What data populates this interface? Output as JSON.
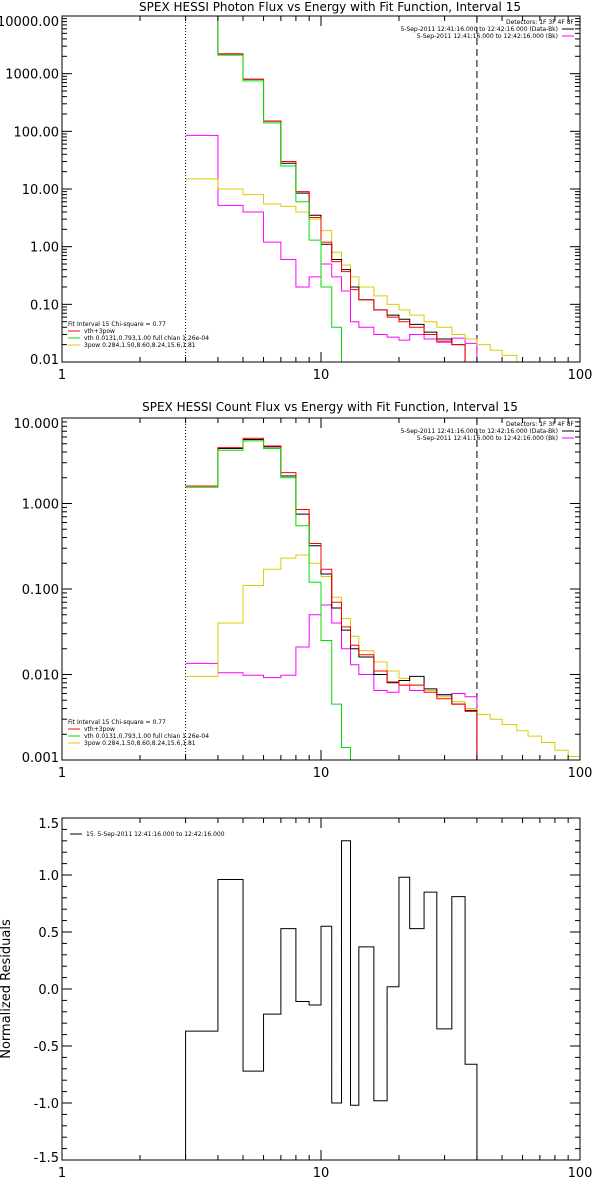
{
  "chart_data": [
    {
      "type": "line",
      "title": "SPEX HESSI Photon Flux vs Energy with Fit Function, Interval 15",
      "xlabel": "",
      "ylabel": "",
      "xscale": "log",
      "yscale": "log",
      "xlim": [
        1,
        100
      ],
      "ylim": [
        0.01,
        10000
      ],
      "xticks": [
        {
          "v": 1,
          "label": "1"
        },
        {
          "v": 10,
          "label": "10"
        },
        {
          "v": 100,
          "label": "100"
        }
      ],
      "yticks": [
        {
          "v": 10000,
          "label": "10000.00"
        },
        {
          "v": 1000,
          "label": "1000.00"
        },
        {
          "v": 100,
          "label": "100.00"
        },
        {
          "v": 10,
          "label": "10.00"
        },
        {
          "v": 1,
          "label": "1.00"
        },
        {
          "v": 0.1,
          "label": "0.10"
        },
        {
          "v": 0.01,
          "label": "0.01"
        }
      ],
      "vlines": [
        {
          "x": 3,
          "style": "dotted",
          "color": "#000000"
        },
        {
          "x": 40,
          "style": "dashed",
          "color": "#000000"
        }
      ],
      "info_lines": [
        "Detectors: 1F 3F 4F 8F",
        "5-Sep-2011 12:41:16.000 to 12:42:16.000 (Data-Bk)",
        "5-Sep-2011 12:41:16.000 to 12:42:16.000 (Bk)"
      ],
      "info_swatches": [
        "#000000",
        "#ff00ff"
      ],
      "fit_header": "Fit Interval 15   Chi-square = 0.77",
      "fit_legend": [
        {
          "label": "vth+3pow",
          "color": "#ff0000"
        },
        {
          "label": "vth 0.0131,0.793,1.00  full chian 1.26e-04",
          "color": "#00dd00"
        },
        {
          "label": "3pow 0.284,1.50,8.60,8.24,15.6,1.81",
          "color": "#ddcc00"
        }
      ],
      "edges": [
        3,
        4,
        5,
        6,
        7,
        8,
        9,
        10,
        11,
        12,
        13,
        14,
        16,
        18,
        20,
        22,
        25,
        28,
        32,
        36,
        40,
        45,
        50,
        57,
        63
      ],
      "series": [
        {
          "color": "#ff00ff",
          "values": [
            85,
            5.2,
            4,
            1.2,
            0.6,
            0.2,
            0.3,
            0.5,
            0.3,
            0.17,
            0.05,
            0.04,
            0.03,
            0.027,
            0.024,
            0.03,
            0.025,
            0.022,
            0.026,
            0.021,
            null,
            null,
            null,
            null
          ]
        },
        {
          "color": "#ddcc00",
          "values": [
            15,
            10,
            8,
            5.5,
            5,
            4,
            3,
            1.9,
            0.8,
            0.48,
            0.3,
            0.2,
            0.14,
            0.1,
            0.08,
            0.065,
            0.05,
            0.04,
            0.03,
            0.025,
            0.02,
            0.016,
            0.013,
            0.01
          ]
        },
        {
          "color": "#000000",
          "values": [
            10000,
            2200,
            800,
            150,
            28,
            8.5,
            3.5,
            1.1,
            0.6,
            0.4,
            0.2,
            0.12,
            0.08,
            0.065,
            0.055,
            0.045,
            0.033,
            0.025,
            0.02,
            null,
            null,
            null,
            null,
            null
          ]
        },
        {
          "color": "#ff0000",
          "values": [
            10000,
            2200,
            800,
            150,
            30,
            9,
            3.2,
            1.2,
            0.55,
            0.37,
            0.18,
            0.12,
            0.08,
            0.06,
            0.05,
            0.04,
            0.03,
            0.023,
            0.02,
            null,
            null,
            null,
            null,
            null
          ]
        },
        {
          "color": "#00dd00",
          "values": [
            10000,
            2100,
            750,
            140,
            25,
            6,
            1.3,
            0.2,
            0.04,
            0.01,
            null,
            null,
            null,
            null,
            null,
            null,
            null,
            null,
            null,
            null,
            null,
            null,
            null,
            null
          ]
        }
      ]
    },
    {
      "type": "line",
      "title": "SPEX HESSI Count Flux vs Energy with Fit Function, Interval 15",
      "xlabel": "",
      "ylabel": "",
      "xscale": "log",
      "yscale": "log",
      "xlim": [
        1,
        100
      ],
      "ylim": [
        0.001,
        10
      ],
      "xticks": [
        {
          "v": 1,
          "label": "1"
        },
        {
          "v": 10,
          "label": "10"
        },
        {
          "v": 100,
          "label": "100"
        }
      ],
      "yticks": [
        {
          "v": 10,
          "label": "10.000"
        },
        {
          "v": 1,
          "label": "1.000"
        },
        {
          "v": 0.1,
          "label": "0.100"
        },
        {
          "v": 0.01,
          "label": "0.010"
        },
        {
          "v": 0.001,
          "label": "0.001"
        }
      ],
      "vlines": [
        {
          "x": 3,
          "style": "dotted",
          "color": "#000000"
        },
        {
          "x": 40,
          "style": "dashed",
          "color": "#000000"
        }
      ],
      "info_lines": [
        "Detectors: 1F 3F 4F 8F",
        "5-Sep-2011 12:41:16.000 to 12:42:16.000 (Data-Bk)",
        "5-Sep-2011 12:41:16.000 to 12:42:16.000 (Bk)"
      ],
      "info_swatches": [
        "#000000",
        "#ff00ff"
      ],
      "fit_header": "Fit Interval 15   Chi-square = 0.77",
      "fit_legend": [
        {
          "label": "vth+3pow",
          "color": "#ff0000"
        },
        {
          "label": "vth 0.0131,0.793,1.00  full chian 1.26e-04",
          "color": "#00dd00"
        },
        {
          "label": "3pow 0.284,1.50,8.60,8.24,15.6,1.81",
          "color": "#ddcc00"
        }
      ],
      "edges": [
        3,
        4,
        5,
        6,
        7,
        8,
        9,
        10,
        11,
        12,
        13,
        14,
        16,
        18,
        20,
        22,
        25,
        28,
        32,
        36,
        40,
        45,
        50,
        57,
        63,
        71,
        80,
        90,
        100
      ],
      "series": [
        {
          "color": "#ff00ff",
          "values": [
            0.0135,
            0.0105,
            0.0098,
            0.0092,
            0.0098,
            0.021,
            0.05,
            0.065,
            0.04,
            0.02,
            0.013,
            0.01,
            0.0065,
            0.0062,
            0.0075,
            0.0065,
            0.0065,
            0.0058,
            0.006,
            0.0055,
            null,
            null,
            null,
            null,
            null,
            null,
            null,
            null
          ]
        },
        {
          "color": "#ddcc00",
          "values": [
            0.0095,
            0.04,
            0.11,
            0.17,
            0.23,
            0.25,
            0.2,
            0.14,
            0.08,
            0.045,
            0.028,
            0.019,
            0.014,
            0.011,
            0.009,
            0.0075,
            0.0065,
            0.0055,
            0.0048,
            0.004,
            0.0034,
            0.003,
            0.0026,
            0.0022,
            0.0019,
            0.0016,
            0.0013,
            0.0011
          ]
        },
        {
          "color": "#000000",
          "values": [
            1.6,
            4.4,
            5.6,
            4.6,
            2.1,
            0.75,
            0.32,
            0.15,
            0.06,
            0.033,
            0.02,
            0.016,
            0.01,
            0.008,
            0.0085,
            0.0095,
            0.0068,
            0.0058,
            0.0045,
            0.0038,
            null,
            null,
            null,
            null,
            null,
            null,
            null,
            null
          ]
        },
        {
          "color": "#ff0000",
          "values": [
            1.6,
            4.5,
            5.8,
            4.7,
            2.3,
            0.85,
            0.34,
            0.17,
            0.07,
            0.036,
            0.022,
            0.017,
            0.011,
            0.0082,
            0.0075,
            0.0075,
            0.0062,
            0.0052,
            0.0045,
            0.0037,
            null,
            null,
            null,
            null,
            null,
            null,
            null,
            null
          ]
        },
        {
          "color": "#00dd00",
          "values": [
            1.55,
            4.2,
            5.4,
            4.4,
            2.0,
            0.55,
            0.12,
            0.025,
            0.0045,
            0.0014,
            null,
            null,
            null,
            null,
            null,
            null,
            null,
            null,
            null,
            null,
            null,
            null,
            null,
            null,
            null,
            null,
            null,
            null
          ]
        }
      ]
    },
    {
      "type": "line",
      "title": "",
      "xlabel": "",
      "ylabel": "Normalized Residuals",
      "xscale": "log",
      "yscale": "linear",
      "xlim": [
        1,
        100
      ],
      "ylim": [
        -1.5,
        1.5
      ],
      "xticks": [
        {
          "v": 1,
          "label": "1"
        },
        {
          "v": 10,
          "label": "10"
        },
        {
          "v": 100,
          "label": "100"
        }
      ],
      "yticks": [
        {
          "v": 1.5,
          "label": "1.5"
        },
        {
          "v": 1.0,
          "label": "1.0"
        },
        {
          "v": 0.5,
          "label": "0.5"
        },
        {
          "v": 0.0,
          "label": "0.0"
        },
        {
          "v": -0.5,
          "label": "-0.5"
        },
        {
          "v": -1.0,
          "label": "-1.0"
        },
        {
          "v": -1.5,
          "label": "-1.5"
        }
      ],
      "legend": [
        {
          "label": "15.  5-Sep-2011 12:41:16.000 to 12:42:16.000",
          "color": "#000000"
        }
      ],
      "edges": [
        3,
        4,
        5,
        6,
        7,
        8,
        9,
        10,
        11,
        12,
        13,
        14,
        16,
        18,
        20,
        22,
        25,
        28,
        32,
        36,
        40
      ],
      "series": [
        {
          "color": "#000000",
          "values": [
            -0.37,
            0.96,
            -0.72,
            -0.22,
            0.53,
            -0.11,
            -0.14,
            0.55,
            -1.0,
            1.3,
            -1.02,
            0.37,
            -0.98,
            0.02,
            0.98,
            0.53,
            0.85,
            -0.35,
            0.81,
            -0.66
          ]
        }
      ]
    }
  ]
}
